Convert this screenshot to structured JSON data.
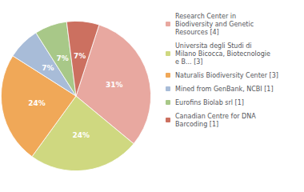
{
  "chart_data": {
    "type": "pie",
    "categories": [
      "Research Center in\nBiodiversity and Genetic\nResources [4]",
      "Universita degli Studi di\nMilano Bicocca, Biotecnologie\ne B... [3]",
      "Naturalis Biodiversity Center [3]",
      "Mined from GenBank, NCBI [1]",
      "Eurofins Biolab srl [1]",
      "Canadian Centre for DNA\nBarcoding [1]"
    ],
    "values": [
      31,
      24,
      24,
      7,
      7,
      7
    ],
    "value_labels": [
      "31%",
      "24%",
      "24%",
      "7%",
      "7%",
      "7%"
    ],
    "colors": [
      "#e8a8a0",
      "#cfd880",
      "#f0a858",
      "#a8bcd8",
      "#a8c888",
      "#cc7060"
    ],
    "data_labels": true,
    "legend": "right"
  }
}
